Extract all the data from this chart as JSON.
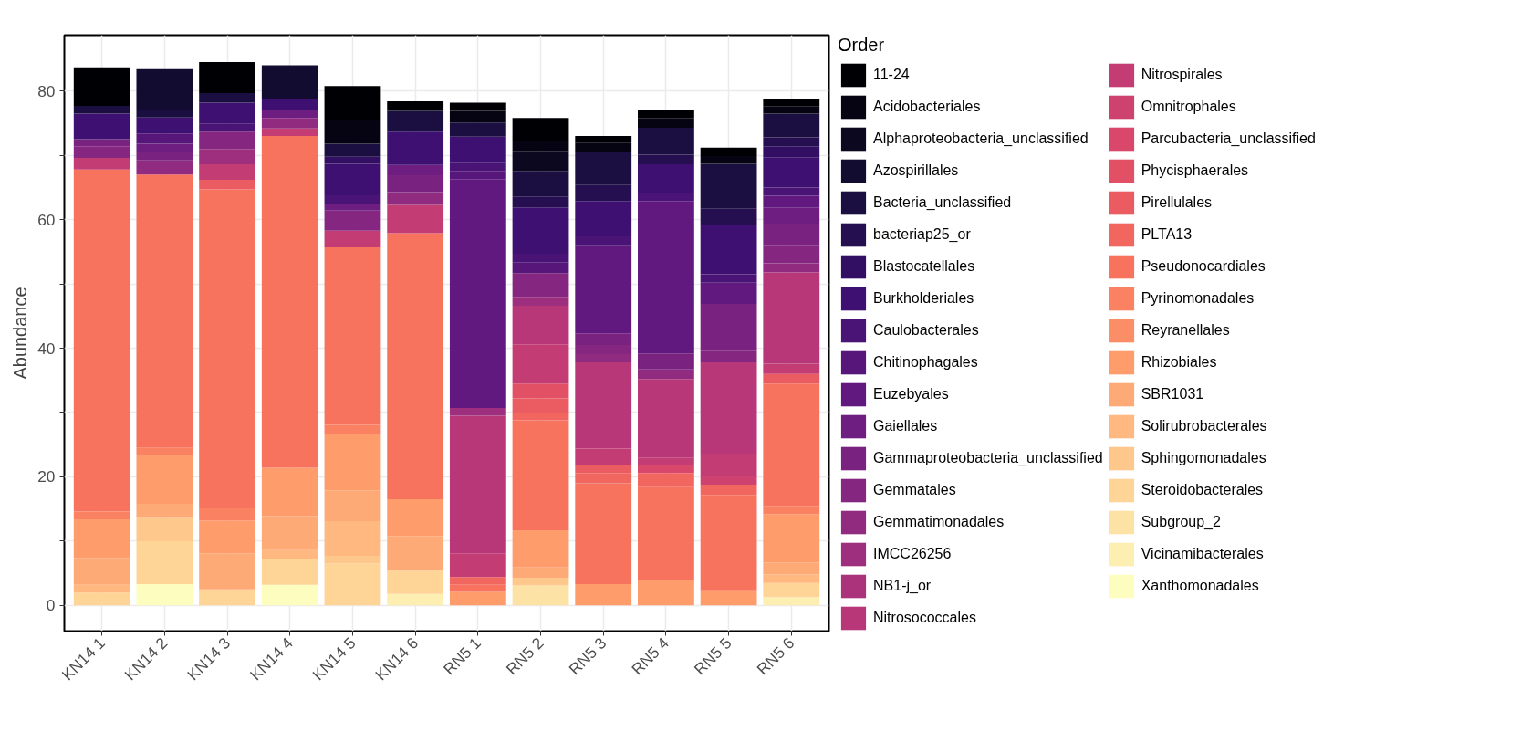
{
  "chart_data": {
    "type": "bar",
    "stacked": true,
    "ylabel": "Abundance",
    "legend_title": "Order",
    "legend": "right",
    "grid": true,
    "categories": [
      "KN14 1",
      "KN14 2",
      "KN14 3",
      "KN14 4",
      "KN14 5",
      "KN14 6",
      "RN5 1",
      "RN5 2",
      "RN5 3",
      "RN5 4",
      "RN5 5",
      "RN5 6"
    ],
    "ylim": [
      -4,
      88.7
    ],
    "yticks": [
      0,
      {
        "value": 10,
        "label": null
      },
      20,
      {
        "value": 30,
        "label": null
      },
      40,
      {
        "value": 50,
        "label": null
      },
      60,
      {
        "value": 70,
        "label": null
      },
      80
    ],
    "series": [
      {
        "name": "Xanthomonadales",
        "color": "#fcfdbf",
        "values": [
          null,
          3.3,
          null,
          3.2,
          null,
          null,
          null,
          null,
          null,
          null,
          null,
          null
        ]
      },
      {
        "name": "Vicinamibacterales",
        "color": "#fdefb2",
        "values": [
          null,
          null,
          null,
          null,
          null,
          1.8,
          null,
          null,
          null,
          null,
          null,
          1.3
        ]
      },
      {
        "name": "Subgroup_2",
        "color": "#fde2a5",
        "values": [
          null,
          null,
          null,
          null,
          null,
          null,
          null,
          3.1,
          null,
          null,
          null,
          null
        ]
      },
      {
        "name": "Steroidobacterales",
        "color": "#fed497",
        "values": [
          2.0,
          6.7,
          2.5,
          4.0,
          6.5,
          3.6,
          null,
          null,
          null,
          null,
          null,
          2.2
        ]
      },
      {
        "name": "Sphingomonadales",
        "color": "#fec78c",
        "values": [
          null,
          3.6,
          null,
          null,
          1.2,
          null,
          null,
          1.2,
          null,
          null,
          null,
          null
        ]
      },
      {
        "name": "Solirubrobacterales",
        "color": "#feb880",
        "values": [
          1.2,
          null,
          null,
          1.4,
          5.4,
          null,
          null,
          null,
          null,
          null,
          null,
          1.3
        ]
      },
      {
        "name": "SBR1031",
        "color": "#feaa76",
        "values": [
          4.2,
          2.2,
          5.6,
          5.3,
          4.8,
          5.4,
          null,
          1.6,
          null,
          null,
          null,
          1.9
        ]
      },
      {
        "name": "Rhizobiales",
        "color": "#fe9c6c",
        "values": [
          6.0,
          7.6,
          5.1,
          7.5,
          8.7,
          5.7,
          2.1,
          5.8,
          3.3,
          3.9,
          2.2,
          7.5
        ]
      },
      {
        "name": "Reyranellales",
        "color": "#fc8e67",
        "values": [
          null,
          null,
          null,
          null,
          null,
          null,
          null,
          null,
          null,
          null,
          null,
          null
        ]
      },
      {
        "name": "Pyrinomonadales",
        "color": "#fa8162",
        "values": [
          1.2,
          1.1,
          1.9,
          null,
          1.5,
          null,
          null,
          null,
          null,
          null,
          null,
          1.3
        ]
      },
      {
        "name": "Pseudonocardiales",
        "color": "#f7735d",
        "values": [
          53.2,
          42.5,
          49.6,
          51.6,
          27.6,
          41.4,
          1.1,
          17.1,
          15.7,
          14.5,
          15.0,
          19.0
        ]
      },
      {
        "name": "PLTA13",
        "color": "#f1675f",
        "values": [
          null,
          null,
          null,
          null,
          null,
          null,
          1.2,
          1.2,
          1.6,
          2.2,
          1.6,
          null
        ]
      },
      {
        "name": "Pirellulales",
        "color": "#ea5b62",
        "values": [
          null,
          null,
          1.5,
          null,
          null,
          null,
          null,
          2.2,
          1.3,
          null,
          null,
          1.5
        ]
      },
      {
        "name": "Phycisphaerales",
        "color": "#e25066",
        "values": [
          null,
          null,
          null,
          null,
          null,
          null,
          null,
          2.3,
          null,
          null,
          null,
          null
        ]
      },
      {
        "name": "Parcubacteria_unclassified",
        "color": "#d9476a",
        "values": [
          null,
          null,
          null,
          null,
          null,
          null,
          null,
          null,
          null,
          1.2,
          null,
          null
        ]
      },
      {
        "name": "Omnitrophales",
        "color": "#ce426f",
        "values": [
          null,
          null,
          null,
          null,
          null,
          null,
          null,
          null,
          null,
          null,
          1.3,
          null
        ]
      },
      {
        "name": "Nitrospirales",
        "color": "#c33c74",
        "values": [
          1.8,
          null,
          2.4,
          1.2,
          2.6,
          4.4,
          3.7,
          6.1,
          2.5,
          1.2,
          3.5,
          1.6
        ]
      },
      {
        "name": "Nitrosococcales",
        "color": "#b73779",
        "values": [
          null,
          null,
          null,
          null,
          null,
          null,
          21.4,
          6.0,
          13.4,
          12.2,
          14.2,
          14.2
        ]
      },
      {
        "name": "NB1-j_or",
        "color": "#aa337b",
        "values": [
          null,
          null,
          null,
          null,
          null,
          null,
          null,
          null,
          null,
          null,
          null,
          null
        ]
      },
      {
        "name": "IMCC26256",
        "color": "#9e2f7e",
        "values": [
          null,
          null,
          2.4,
          null,
          null,
          null,
          1.2,
          1.4,
          null,
          null,
          null,
          null
        ]
      },
      {
        "name": "Gemmatimonadales",
        "color": "#912b80",
        "values": [
          null,
          2.2,
          null,
          1.6,
          null,
          2.0,
          null,
          null,
          1.3,
          1.5,
          null,
          1.4
        ]
      },
      {
        "name": "Gemmatales",
        "color": "#852681",
        "values": [
          1.8,
          null,
          2.7,
          null,
          3.1,
          null,
          null,
          3.7,
          1.4,
          null,
          1.8,
          2.9
        ]
      },
      {
        "name": "Gammaproteobacteria_unclassified",
        "color": "#792280",
        "values": [
          1.1,
          1.3,
          null,
          null,
          null,
          2.6,
          null,
          null,
          1.8,
          2.5,
          7.3,
          3.3
        ]
      },
      {
        "name": "Gaiellales",
        "color": "#6d1e80",
        "values": [
          null,
          1.3,
          null,
          1.2,
          1.1,
          1.6,
          null,
          null,
          null,
          null,
          null,
          2.5
        ]
      },
      {
        "name": "Euzebyales",
        "color": "#62197f",
        "values": [
          null,
          null,
          null,
          null,
          null,
          null,
          35.6,
          null,
          13.7,
          23.7,
          3.3,
          1.8
        ]
      },
      {
        "name": "Chitinophagales",
        "color": "#56167a",
        "values": [
          null,
          1.6,
          null,
          null,
          null,
          null,
          1.3,
          1.6,
          null,
          null,
          null,
          null
        ]
      },
      {
        "name": "Caulobacterales",
        "color": "#4a1376",
        "values": [
          null,
          null,
          1.2,
          null,
          1.3,
          null,
          1.2,
          1.4,
          1.4,
          1.3,
          1.3,
          1.3
        ]
      },
      {
        "name": "Burkholderiales",
        "color": "#3d1071",
        "values": [
          4.0,
          2.5,
          3.3,
          1.8,
          4.9,
          5.2,
          4.1,
          7.2,
          5.5,
          4.4,
          7.6,
          4.7
        ]
      },
      {
        "name": "Blastocatellales",
        "color": "#320f62",
        "values": [
          null,
          null,
          null,
          null,
          1.1,
          null,
          null,
          null,
          null,
          null,
          null,
          1.7
        ]
      },
      {
        "name": "bacteriap25_or",
        "color": "#260f51",
        "values": [
          null,
          null,
          null,
          null,
          null,
          null,
          null,
          1.7,
          2.5,
          1.5,
          2.6,
          1.4
        ]
      },
      {
        "name": "Bacteria_unclassified",
        "color": "#1b0e40",
        "values": [
          1.2,
          1.1,
          1.5,
          null,
          2.0,
          3.2,
          2.2,
          4.0,
          5.2,
          4.2,
          7.0,
          3.7
        ]
      },
      {
        "name": "Azospirillales",
        "color": "#120c31",
        "values": [
          null,
          6.4,
          null,
          5.2,
          null,
          null,
          null,
          null,
          null,
          null,
          null,
          null
        ]
      },
      {
        "name": "Alphaproteobacteria_unclassified",
        "color": "#0c081f",
        "values": [
          null,
          null,
          null,
          null,
          null,
          null,
          null,
          3.1,
          null,
          null,
          null,
          null
        ]
      },
      {
        "name": "Acidobacteriales",
        "color": "#060413",
        "values": [
          null,
          null,
          null,
          null,
          3.7,
          null,
          1.8,
          1.5,
          1.3,
          1.5,
          1.2,
          1.1
        ]
      },
      {
        "name": "11-24",
        "color": "#000004",
        "values": [
          6.0,
          null,
          4.8,
          null,
          5.3,
          1.5,
          1.3,
          3.6,
          1.1,
          1.2,
          1.3,
          1.1
        ]
      }
    ]
  }
}
